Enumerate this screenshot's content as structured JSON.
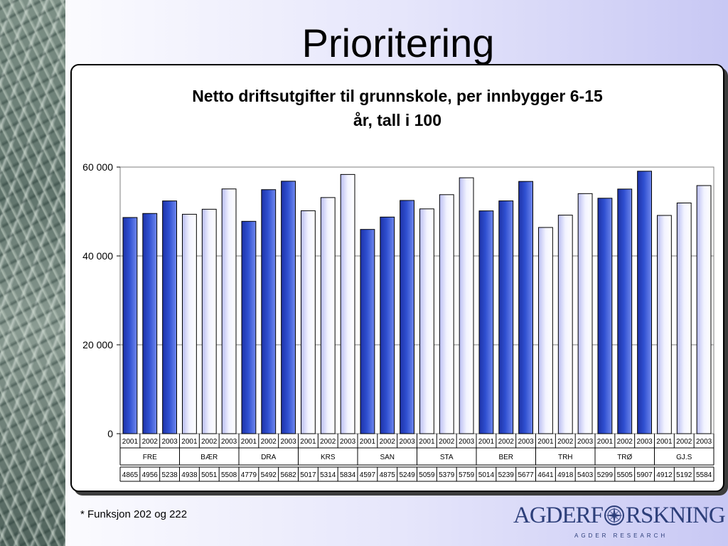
{
  "slide": {
    "title": "Prioritering",
    "footnote": "* Funksjon 202 og 222",
    "logo": {
      "left": "AGDERF",
      "right": "RSKNING",
      "subtitle": "AGDER RESEARCH",
      "icon": "compass-rose-icon"
    }
  },
  "colors": {
    "dark_bar": "#2f4fd0",
    "light_bar": "#f2f3ff",
    "bar_stroke": "#000000",
    "logo": "#2d3f7a"
  },
  "chart_data": {
    "type": "bar",
    "title_lines": [
      "Netto driftsutgifter til grunnskole, per innbygger 6-15",
      "år, tall i 100"
    ],
    "ylim": [
      0,
      60000
    ],
    "yticks": [
      0,
      20000,
      40000,
      60000
    ],
    "ytick_labels": [
      "0",
      "20 000",
      "40 000",
      "60 000"
    ],
    "grid": true,
    "groups": [
      {
        "name": "FRE",
        "years": [
          "2001",
          "2002",
          "2003"
        ],
        "values": [
          48650,
          49560,
          52380
        ],
        "labels": [
          "4865",
          "4956",
          "5238"
        ],
        "shade": "dark"
      },
      {
        "name": "BÆR",
        "years": [
          "2001",
          "2002",
          "2003"
        ],
        "values": [
          49380,
          50510,
          55080
        ],
        "labels": [
          "4938",
          "5051",
          "5508"
        ],
        "shade": "light"
      },
      {
        "name": "DRA",
        "years": [
          "2001",
          "2002",
          "2003"
        ],
        "values": [
          47790,
          54920,
          56820
        ],
        "labels": [
          "4779",
          "5492",
          "5682"
        ],
        "shade": "dark"
      },
      {
        "name": "KRS",
        "years": [
          "2001",
          "2002",
          "2003"
        ],
        "values": [
          50170,
          53140,
          58340
        ],
        "labels": [
          "5017",
          "5314",
          "5834"
        ],
        "shade": "light"
      },
      {
        "name": "SAN",
        "years": [
          "2001",
          "2002",
          "2003"
        ],
        "values": [
          45970,
          48750,
          52490
        ],
        "labels": [
          "4597",
          "4875",
          "5249"
        ],
        "shade": "dark"
      },
      {
        "name": "STA",
        "years": [
          "2001",
          "2002",
          "2003"
        ],
        "values": [
          50590,
          53790,
          57590
        ],
        "labels": [
          "5059",
          "5379",
          "5759"
        ],
        "shade": "light"
      },
      {
        "name": "BER",
        "years": [
          "2001",
          "2002",
          "2003"
        ],
        "values": [
          50140,
          52390,
          56770
        ],
        "labels": [
          "5014",
          "5239",
          "5677"
        ],
        "shade": "dark"
      },
      {
        "name": "TRH",
        "years": [
          "2001",
          "2002",
          "2003"
        ],
        "values": [
          46410,
          49180,
          54030
        ],
        "labels": [
          "4641",
          "4918",
          "5403"
        ],
        "shade": "light"
      },
      {
        "name": "TRØ",
        "years": [
          "2001",
          "2002",
          "2003"
        ],
        "values": [
          52990,
          55050,
          59070
        ],
        "labels": [
          "5299",
          "5505",
          "5907"
        ],
        "shade": "dark"
      },
      {
        "name": "GJ.S",
        "years": [
          "2001",
          "2002",
          "2003"
        ],
        "values": [
          49120,
          51920,
          55840
        ],
        "labels": [
          "4912",
          "5192",
          "5584"
        ],
        "shade": "light"
      }
    ]
  }
}
